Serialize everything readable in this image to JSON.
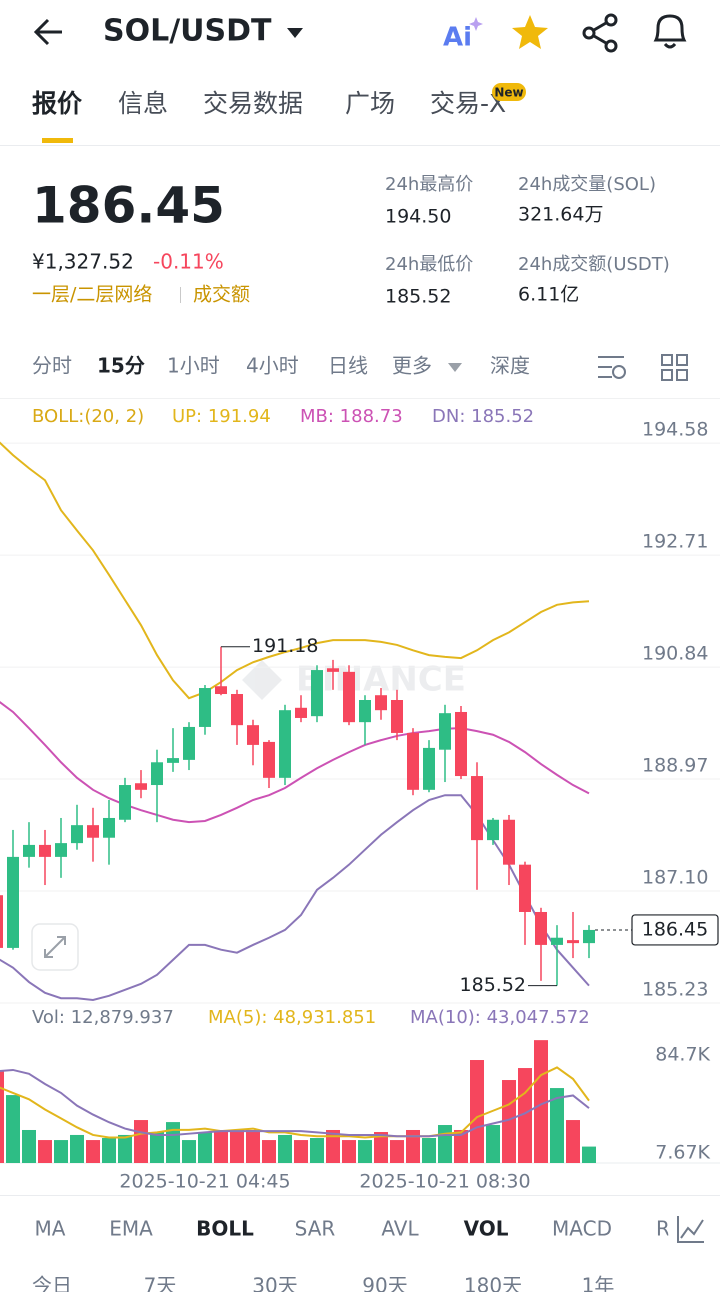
{
  "header": {
    "pair": "SOL/USDT"
  },
  "tabs": [
    "报价",
    "信息",
    "交易数据",
    "广场",
    "交易-X"
  ],
  "tab_badge": "New",
  "ticker": {
    "price": "186.45",
    "cny": "¥1,327.52",
    "change": "-0.11%",
    "tags": [
      "一层/二层网络",
      "成交额"
    ],
    "stats": [
      {
        "label": "24h最高价",
        "value": "194.50"
      },
      {
        "label": "24h成交量(SOL)",
        "value": "321.64万"
      },
      {
        "label": "24h最低价",
        "value": "185.52"
      },
      {
        "label": "24h成交额(USDT)",
        "value": "6.11亿"
      }
    ]
  },
  "intervals": [
    "分时",
    "15分",
    "1小时",
    "4小时",
    "日线",
    "更多",
    "深度"
  ],
  "chart_data": [
    {
      "type": "candlestick",
      "indicator": "BOLL:(20, 2)",
      "watermark": "BINANCE",
      "categories": [
        null,
        null,
        null,
        null,
        null,
        null,
        null,
        null,
        null,
        null,
        null,
        null,
        null,
        "2025-10-21 04:45",
        null,
        null,
        null,
        null,
        null,
        null,
        null,
        null,
        null,
        null,
        null,
        null,
        null,
        null,
        "2025-10-21 08:30",
        null,
        null,
        null,
        null,
        null,
        null,
        null,
        null,
        null
      ],
      "open": [
        187.03,
        186.15,
        187.67,
        187.87,
        187.67,
        187.9,
        188.2,
        187.99,
        188.29,
        188.9,
        188.87,
        189.24,
        189.29,
        189.84,
        190.52,
        190.39,
        189.87,
        189.59,
        188.99,
        190.16,
        190.02,
        190.82,
        190.76,
        189.92,
        190.37,
        190.29,
        189.74,
        188.79,
        189.46,
        190.09,
        189.02,
        187.95,
        188.29,
        187.54,
        186.75,
        186.2,
        186.28,
        186.23
      ],
      "high": [
        187.1,
        188.12,
        188.25,
        188.12,
        188.32,
        188.54,
        188.49,
        188.62,
        188.99,
        189.12,
        189.46,
        189.82,
        189.92,
        190.54,
        191.18,
        190.46,
        189.96,
        189.62,
        190.21,
        190.37,
        190.87,
        190.96,
        190.87,
        190.37,
        190.49,
        190.46,
        189.82,
        189.62,
        190.21,
        190.19,
        189.25,
        188.32,
        188.37,
        187.59,
        186.82,
        186.53,
        186.75,
        186.53
      ],
      "low": [
        186.12,
        186.12,
        187.49,
        187.2,
        187.32,
        187.79,
        187.59,
        187.54,
        188.25,
        188.65,
        188.25,
        189.09,
        189.12,
        189.71,
        190.37,
        189.54,
        189.2,
        188.82,
        188.87,
        189.92,
        189.92,
        190.46,
        189.87,
        189.54,
        189.96,
        189.62,
        188.7,
        188.75,
        188.92,
        188.97,
        187.12,
        187.87,
        187.2,
        186.2,
        185.6,
        185.52,
        185.98,
        185.98
      ],
      "close": [
        186.15,
        187.67,
        187.87,
        187.67,
        187.9,
        188.2,
        187.99,
        188.32,
        188.87,
        188.79,
        189.25,
        189.32,
        189.84,
        190.49,
        190.39,
        189.87,
        189.54,
        188.99,
        190.12,
        189.99,
        190.79,
        190.76,
        189.92,
        190.29,
        190.12,
        189.74,
        188.79,
        189.49,
        190.07,
        189.02,
        187.95,
        188.29,
        187.54,
        186.75,
        186.2,
        186.32,
        186.23,
        186.45
      ],
      "up_color": "#2ebd85",
      "down_color": "#f6465d",
      "series": [
        {
          "name": "UP: 191.94",
          "color": "#e2b61c",
          "values": [
            194.63,
            194.38,
            194.16,
            193.96,
            193.46,
            193.12,
            192.79,
            192.38,
            191.96,
            191.54,
            191.04,
            190.62,
            190.32,
            190.42,
            190.59,
            190.79,
            190.92,
            191.01,
            191.09,
            191.16,
            191.24,
            191.29,
            191.29,
            191.29,
            191.26,
            191.21,
            191.12,
            191.04,
            191.01,
            190.99,
            191.12,
            191.29,
            191.42,
            191.59,
            191.76,
            191.88,
            191.92,
            191.94
          ]
        },
        {
          "name": "MB: 188.73",
          "color": "#cc52b4",
          "values": [
            190.29,
            190.09,
            189.82,
            189.54,
            189.25,
            188.99,
            188.79,
            188.65,
            188.54,
            188.45,
            188.37,
            188.29,
            188.25,
            188.27,
            188.37,
            188.49,
            188.62,
            188.7,
            188.82,
            188.99,
            189.15,
            189.29,
            189.42,
            189.54,
            189.62,
            189.69,
            189.74,
            189.77,
            189.81,
            189.82,
            189.77,
            189.71,
            189.59,
            189.42,
            189.22,
            189.04,
            188.87,
            188.73
          ]
        },
        {
          "name": "DN: 185.52",
          "color": "#8a76b8",
          "values": [
            185.98,
            185.82,
            185.58,
            185.4,
            185.31,
            185.31,
            185.28,
            185.35,
            185.45,
            185.55,
            185.7,
            185.95,
            186.2,
            186.2,
            186.12,
            186.07,
            186.2,
            186.32,
            186.45,
            186.7,
            187.12,
            187.32,
            187.54,
            187.79,
            188.04,
            188.25,
            188.45,
            188.62,
            188.7,
            188.7,
            188.37,
            187.95,
            187.54,
            187.03,
            186.53,
            186.12,
            185.82,
            185.52
          ]
        }
      ],
      "ylim": [
        185.23,
        195.3
      ],
      "yticks": [
        194.58,
        192.71,
        190.84,
        188.97,
        {
          "value": 187.1,
          "label": "187.10"
        },
        185.23
      ],
      "grid": true
    },
    {
      "type": "bar",
      "label": "Vol: 12,879.937",
      "values": [
        72900,
        53300,
        25900,
        18000,
        18000,
        22000,
        18000,
        19600,
        22000,
        33700,
        24300,
        32100,
        18000,
        24300,
        25900,
        25900,
        25900,
        18000,
        22000,
        18000,
        19600,
        25900,
        18000,
        18000,
        24300,
        18000,
        25900,
        19600,
        29800,
        25900,
        80800,
        29800,
        65100,
        74500,
        96400,
        58800,
        33700,
        12879.937
      ],
      "series": [
        {
          "name": "MA(5): 48,931.851",
          "color": "#e2b61c",
          "values": [
            60000,
            55000,
            50000,
            42000,
            35000,
            28000,
            22000,
            20000,
            20000,
            23000,
            24000,
            26000,
            26000,
            27000,
            25000,
            26000,
            27000,
            24000,
            24000,
            22000,
            21000,
            21000,
            21000,
            20000,
            21000,
            21000,
            21000,
            21000,
            23000,
            24000,
            36000,
            41000,
            46000,
            55000,
            69000,
            75000,
            66000,
            48931.851
          ]
        },
        {
          "name": "MA(10): 43,047.572",
          "color": "#8a76b8",
          "values": [
            72000,
            73000,
            70000,
            62000,
            55000,
            45000,
            38000,
            32000,
            27000,
            24000,
            22000,
            22000,
            23000,
            24000,
            25000,
            25000,
            25000,
            25000,
            25000,
            25000,
            24000,
            23000,
            22000,
            22000,
            22000,
            21000,
            21000,
            21000,
            22000,
            22000,
            28000,
            31000,
            34000,
            39000,
            46000,
            51000,
            53000,
            43047.572
          ]
        }
      ],
      "ylim": [
        0,
        102000
      ],
      "yticks": [
        {
          "value": 84700,
          "label": "84.7K"
        },
        {
          "value": 7670,
          "label": "7.67K"
        }
      ]
    }
  ],
  "indicators": [
    "MA",
    "EMA",
    "BOLL",
    "SAR",
    "AVL",
    "VOL",
    "MACD",
    "R"
  ],
  "ranges": [
    "今日",
    "7天",
    "30天",
    "90天",
    "180天",
    "1年"
  ]
}
